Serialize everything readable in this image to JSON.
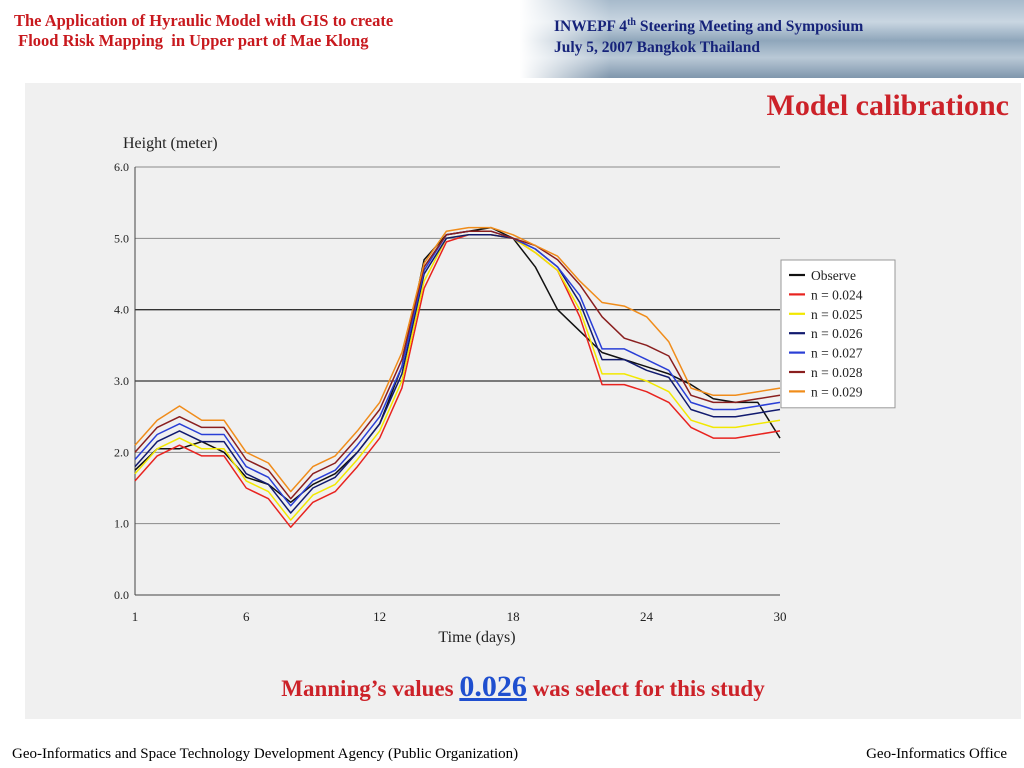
{
  "header": {
    "title": "The Application of Hyraulic Model with GIS to create\n Flood Risk Mapping  in Upper part of Mae Klong",
    "meeting_prefix": "INWEPF  4",
    "meeting_sup": "th",
    "meeting_suffix": "  Steering Meeting and Symposium",
    "date_line": "July  5, 2007  Bangkok  Thailand"
  },
  "slide_title": "Model calibrationc",
  "caption": {
    "prefix": "Manning’s values ",
    "value": "0.026",
    "suffix": " was select for this study"
  },
  "footer": {
    "left": "Geo-Informatics and Space Technology Development Agency (Public Organization)",
    "right": "Geo-Informatics Office"
  },
  "colors": {
    "accent_red": "#cc2229",
    "navy": "#16237a",
    "link_blue": "#1f4fcf"
  },
  "chart_data": {
    "type": "line",
    "ylabel": "Height (meter)",
    "xlabel": "Time (days)",
    "xlim": [
      1,
      30
    ],
    "ylim": [
      0,
      6
    ],
    "xticks": [
      1,
      6,
      12,
      18,
      24,
      30
    ],
    "xtick_labels": [
      "1",
      "6",
      "12",
      "18",
      "24",
      "30"
    ],
    "yticks": [
      0,
      1,
      2,
      3,
      4,
      5,
      6
    ],
    "ytick_labels": [
      "0.0",
      "1.0",
      "2.0",
      "3.0",
      "4.0",
      "5.0",
      "6.0"
    ],
    "grid": true,
    "legend_position": "right",
    "x": [
      1,
      2,
      3,
      4,
      5,
      6,
      7,
      8,
      9,
      10,
      11,
      12,
      13,
      14,
      15,
      16,
      17,
      18,
      19,
      20,
      21,
      22,
      23,
      24,
      25,
      26,
      27,
      28,
      29,
      30
    ],
    "series": [
      {
        "name": "Observe",
        "color": "#111111",
        "values": [
          1.75,
          2.05,
          2.05,
          2.15,
          2.0,
          1.65,
          1.55,
          1.3,
          1.55,
          1.7,
          2.0,
          2.4,
          3.2,
          4.7,
          5.05,
          5.1,
          5.15,
          5.0,
          4.6,
          4.0,
          3.7,
          3.4,
          3.3,
          3.2,
          3.1,
          2.95,
          2.75,
          2.7,
          2.7,
          2.2
        ]
      },
      {
        "name": "n = 0.024",
        "color": "#e8231f",
        "values": [
          1.6,
          1.95,
          2.1,
          1.95,
          1.95,
          1.5,
          1.35,
          0.95,
          1.3,
          1.45,
          1.8,
          2.2,
          2.9,
          4.3,
          4.95,
          5.05,
          5.05,
          5.0,
          4.8,
          4.55,
          3.9,
          2.95,
          2.95,
          2.85,
          2.7,
          2.35,
          2.2,
          2.2,
          2.25,
          2.3
        ]
      },
      {
        "name": "n = 0.025",
        "color": "#f2e800",
        "values": [
          1.7,
          2.05,
          2.2,
          2.05,
          2.05,
          1.6,
          1.45,
          1.05,
          1.4,
          1.55,
          1.9,
          2.3,
          3.0,
          4.4,
          5.0,
          5.05,
          5.05,
          5.0,
          4.8,
          4.55,
          4.0,
          3.1,
          3.1,
          3.0,
          2.85,
          2.45,
          2.35,
          2.35,
          2.4,
          2.45
        ]
      },
      {
        "name": "n = 0.026",
        "color": "#111a6e",
        "values": [
          1.8,
          2.15,
          2.3,
          2.15,
          2.15,
          1.7,
          1.55,
          1.15,
          1.5,
          1.65,
          2.0,
          2.4,
          3.1,
          4.5,
          5.0,
          5.05,
          5.05,
          5.0,
          4.85,
          4.6,
          4.1,
          3.3,
          3.3,
          3.15,
          3.05,
          2.6,
          2.5,
          2.5,
          2.55,
          2.6
        ]
      },
      {
        "name": "n = 0.027",
        "color": "#2a3fd6",
        "values": [
          1.9,
          2.25,
          2.4,
          2.25,
          2.25,
          1.8,
          1.65,
          1.25,
          1.6,
          1.75,
          2.1,
          2.5,
          3.2,
          4.55,
          5.05,
          5.1,
          5.1,
          5.0,
          4.85,
          4.6,
          4.2,
          3.45,
          3.45,
          3.3,
          3.15,
          2.7,
          2.6,
          2.6,
          2.65,
          2.7
        ]
      },
      {
        "name": "n = 0.028",
        "color": "#8a1f1f",
        "values": [
          2.0,
          2.35,
          2.5,
          2.35,
          2.35,
          1.9,
          1.75,
          1.35,
          1.7,
          1.85,
          2.2,
          2.6,
          3.3,
          4.6,
          5.05,
          5.1,
          5.1,
          5.0,
          4.9,
          4.7,
          4.35,
          3.9,
          3.6,
          3.5,
          3.35,
          2.8,
          2.7,
          2.7,
          2.75,
          2.8
        ]
      },
      {
        "name": "n = 0.029",
        "color": "#f08c1a",
        "values": [
          2.1,
          2.45,
          2.65,
          2.45,
          2.45,
          2.0,
          1.85,
          1.45,
          1.8,
          1.95,
          2.3,
          2.7,
          3.4,
          4.65,
          5.1,
          5.15,
          5.15,
          5.05,
          4.9,
          4.75,
          4.4,
          4.1,
          4.05,
          3.9,
          3.55,
          2.9,
          2.8,
          2.8,
          2.85,
          2.9
        ]
      }
    ]
  }
}
